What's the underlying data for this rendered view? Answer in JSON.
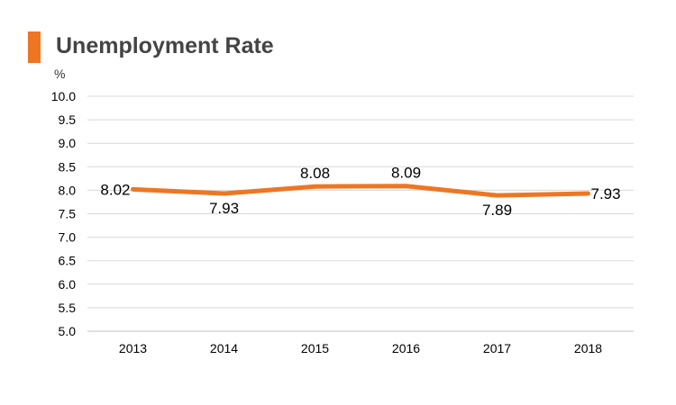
{
  "title": "Unemployment Rate",
  "unit": "%",
  "colors": {
    "accent": "#ee7623",
    "grid": "#d9d9d9",
    "axis": "#bfbfbf",
    "text": "#000000"
  },
  "chart_data": {
    "type": "line",
    "title": "Unemployment Rate",
    "ylabel": "%",
    "xlabel": "",
    "categories": [
      "2013",
      "2014",
      "2015",
      "2016",
      "2017",
      "2018"
    ],
    "series": [
      {
        "values": [
          8.02,
          7.93,
          8.08,
          8.09,
          7.89,
          7.93
        ],
        "labels": [
          "8.02",
          "7.93",
          "8.08",
          "8.09",
          "7.89",
          "7.93"
        ]
      }
    ],
    "ylim": [
      5.0,
      10.0
    ],
    "yticks": [
      "5.0",
      "5.5",
      "6.0",
      "6.5",
      "7.0",
      "7.5",
      "8.0",
      "8.5",
      "9.0",
      "9.5",
      "10.0"
    ],
    "grid": true,
    "legend": "none"
  }
}
